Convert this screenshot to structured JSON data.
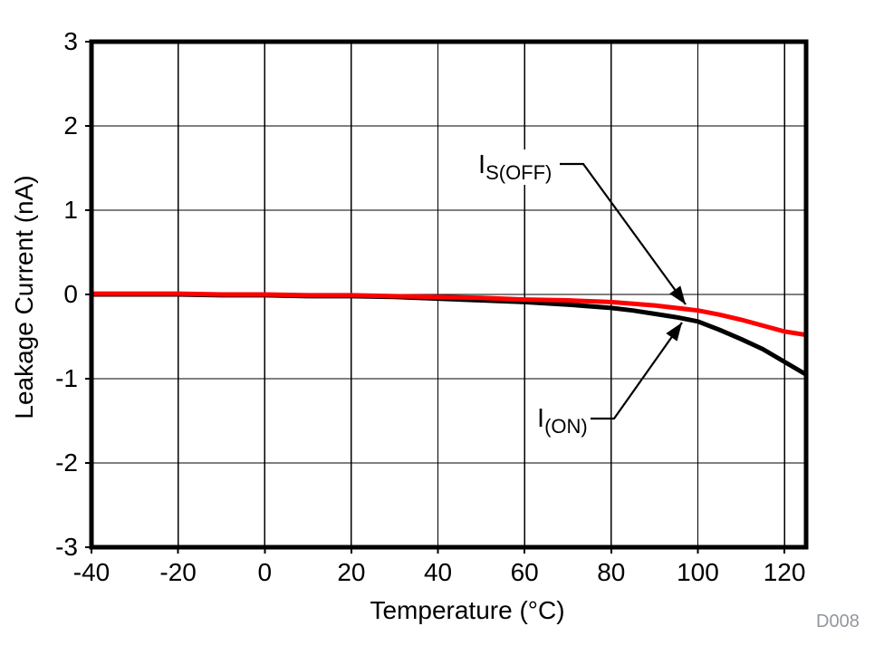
{
  "figure": {
    "watermark": "D008",
    "colors": {
      "background": "#ffffff",
      "axis": "#000000",
      "grid": "#000000",
      "series_red": "#ff0000",
      "series_black": "#000000",
      "watermark_gray": "#92979d"
    }
  },
  "chart_data": {
    "type": "line",
    "title": "",
    "xlabel": "Temperature (°C)",
    "ylabel": "Leakage Current (nA)",
    "xlim": [
      -40,
      125
    ],
    "ylim": [
      -3,
      3
    ],
    "x_ticks": [
      -40,
      -20,
      0,
      20,
      40,
      60,
      80,
      100,
      120
    ],
    "y_ticks": [
      3,
      2,
      1,
      0,
      -1,
      -2,
      -3
    ],
    "grid": true,
    "legend_position": "on-plot annotations with leader arrows",
    "series": [
      {
        "name": "IS(OFF)",
        "label": {
          "main": "I",
          "sub": "S(OFF)"
        },
        "color": "#ff0000",
        "x": [
          -40,
          -30,
          -20,
          -10,
          0,
          10,
          20,
          30,
          40,
          50,
          60,
          70,
          80,
          85,
          90,
          95,
          100,
          105,
          110,
          115,
          120,
          125
        ],
        "y": [
          0.01,
          0.01,
          0.01,
          0.0,
          0.0,
          -0.01,
          -0.01,
          -0.02,
          -0.03,
          -0.04,
          -0.06,
          -0.07,
          -0.09,
          -0.11,
          -0.13,
          -0.16,
          -0.19,
          -0.24,
          -0.3,
          -0.37,
          -0.44,
          -0.48
        ]
      },
      {
        "name": "I(ON)",
        "label": {
          "main": "I",
          "sub": "(ON)"
        },
        "color": "#000000",
        "x": [
          -40,
          -30,
          -20,
          -10,
          0,
          10,
          20,
          30,
          40,
          50,
          60,
          70,
          80,
          85,
          90,
          95,
          100,
          105,
          110,
          115,
          120,
          125
        ],
        "y": [
          0.0,
          0.0,
          0.0,
          -0.01,
          -0.01,
          -0.02,
          -0.02,
          -0.03,
          -0.05,
          -0.07,
          -0.09,
          -0.12,
          -0.16,
          -0.19,
          -0.23,
          -0.27,
          -0.32,
          -0.42,
          -0.53,
          -0.65,
          -0.8,
          -0.95
        ]
      }
    ]
  }
}
